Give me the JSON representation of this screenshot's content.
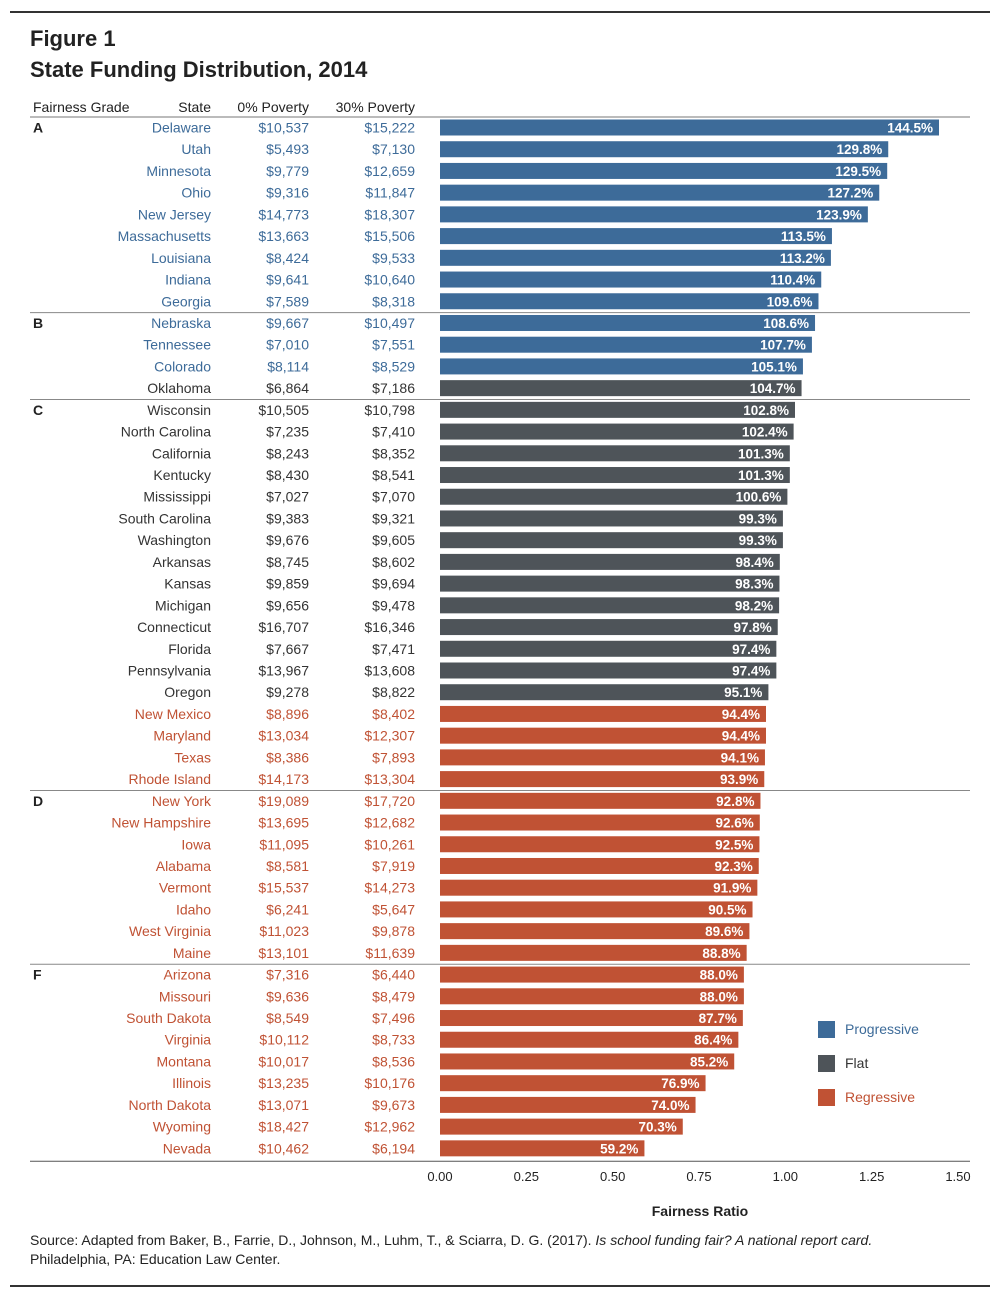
{
  "figure_label": "Figure 1",
  "figure_title": "State Funding Distribution, 2014",
  "source": {
    "prefix": "Source: Adapted from Baker, B., Farrie, D., Johnson, M., Luhm, T., & Sciarra, D. G. (2017). ",
    "italic": "Is school funding fair? A national report card.",
    "suffix": "Philadelphia, PA: Education Law Center."
  },
  "colors": {
    "Progressive": "#3d6b99",
    "Flat": "#4e5459",
    "Regressive": "#c05234",
    "text_dark": "#333333"
  },
  "chart_data": {
    "type": "bar",
    "orientation": "horizontal",
    "column_headers": {
      "grade": "Fairness Grade",
      "state": "State",
      "p0": "0% Poverty",
      "p30": "30% Poverty"
    },
    "xlabel": "Fairness Ratio",
    "ylabel": "",
    "xlim": [
      0,
      1.5
    ],
    "xticks": [
      "0.00",
      "0.25",
      "0.50",
      "0.75",
      "1.00",
      "1.25",
      "1.50"
    ],
    "xtick_values": [
      0,
      0.25,
      0.5,
      0.75,
      1.0,
      1.25,
      1.5
    ],
    "grid": false,
    "legend_position": "right",
    "legend": [
      "Progressive",
      "Flat",
      "Regressive"
    ],
    "groups": [
      {
        "grade": "A",
        "rows": [
          {
            "state": "Delaware",
            "p0": "$10,537",
            "p30": "$15,222",
            "ratio": 1.445,
            "label": "144.5%",
            "category": "Progressive"
          },
          {
            "state": "Utah",
            "p0": "$5,493",
            "p30": "$7,130",
            "ratio": 1.298,
            "label": "129.8%",
            "category": "Progressive"
          },
          {
            "state": "Minnesota",
            "p0": "$9,779",
            "p30": "$12,659",
            "ratio": 1.295,
            "label": "129.5%",
            "category": "Progressive"
          },
          {
            "state": "Ohio",
            "p0": "$9,316",
            "p30": "$11,847",
            "ratio": 1.272,
            "label": "127.2%",
            "category": "Progressive"
          },
          {
            "state": "New Jersey",
            "p0": "$14,773",
            "p30": "$18,307",
            "ratio": 1.239,
            "label": "123.9%",
            "category": "Progressive"
          },
          {
            "state": "Massachusetts",
            "p0": "$13,663",
            "p30": "$15,506",
            "ratio": 1.135,
            "label": "113.5%",
            "category": "Progressive"
          },
          {
            "state": "Louisiana",
            "p0": "$8,424",
            "p30": "$9,533",
            "ratio": 1.132,
            "label": "113.2%",
            "category": "Progressive"
          },
          {
            "state": "Indiana",
            "p0": "$9,641",
            "p30": "$10,640",
            "ratio": 1.104,
            "label": "110.4%",
            "category": "Progressive"
          },
          {
            "state": "Georgia",
            "p0": "$7,589",
            "p30": "$8,318",
            "ratio": 1.096,
            "label": "109.6%",
            "category": "Progressive"
          }
        ]
      },
      {
        "grade": "B",
        "rows": [
          {
            "state": "Nebraska",
            "p0": "$9,667",
            "p30": "$10,497",
            "ratio": 1.086,
            "label": "108.6%",
            "category": "Progressive"
          },
          {
            "state": "Tennessee",
            "p0": "$7,010",
            "p30": "$7,551",
            "ratio": 1.077,
            "label": "107.7%",
            "category": "Progressive"
          },
          {
            "state": "Colorado",
            "p0": "$8,114",
            "p30": "$8,529",
            "ratio": 1.051,
            "label": "105.1%",
            "category": "Progressive"
          },
          {
            "state": "Oklahoma",
            "p0": "$6,864",
            "p30": "$7,186",
            "ratio": 1.047,
            "label": "104.7%",
            "category": "Flat"
          }
        ]
      },
      {
        "grade": "C",
        "rows": [
          {
            "state": "Wisconsin",
            "p0": "$10,505",
            "p30": "$10,798",
            "ratio": 1.028,
            "label": "102.8%",
            "category": "Flat"
          },
          {
            "state": "North Carolina",
            "p0": "$7,235",
            "p30": "$7,410",
            "ratio": 1.024,
            "label": "102.4%",
            "category": "Flat"
          },
          {
            "state": "California",
            "p0": "$8,243",
            "p30": "$8,352",
            "ratio": 1.013,
            "label": "101.3%",
            "category": "Flat"
          },
          {
            "state": "Kentucky",
            "p0": "$8,430",
            "p30": "$8,541",
            "ratio": 1.013,
            "label": "101.3%",
            "category": "Flat"
          },
          {
            "state": "Mississippi",
            "p0": "$7,027",
            "p30": "$7,070",
            "ratio": 1.006,
            "label": "100.6%",
            "category": "Flat"
          },
          {
            "state": "South Carolina",
            "p0": "$9,383",
            "p30": "$9,321",
            "ratio": 0.993,
            "label": "99.3%",
            "category": "Flat"
          },
          {
            "state": "Washington",
            "p0": "$9,676",
            "p30": "$9,605",
            "ratio": 0.993,
            "label": "99.3%",
            "category": "Flat"
          },
          {
            "state": "Arkansas",
            "p0": "$8,745",
            "p30": "$8,602",
            "ratio": 0.984,
            "label": "98.4%",
            "category": "Flat"
          },
          {
            "state": "Kansas",
            "p0": "$9,859",
            "p30": "$9,694",
            "ratio": 0.983,
            "label": "98.3%",
            "category": "Flat"
          },
          {
            "state": "Michigan",
            "p0": "$9,656",
            "p30": "$9,478",
            "ratio": 0.982,
            "label": "98.2%",
            "category": "Flat"
          },
          {
            "state": "Connecticut",
            "p0": "$16,707",
            "p30": "$16,346",
            "ratio": 0.978,
            "label": "97.8%",
            "category": "Flat"
          },
          {
            "state": "Florida",
            "p0": "$7,667",
            "p30": "$7,471",
            "ratio": 0.974,
            "label": "97.4%",
            "category": "Flat"
          },
          {
            "state": "Pennsylvania",
            "p0": "$13,967",
            "p30": "$13,608",
            "ratio": 0.974,
            "label": "97.4%",
            "category": "Flat"
          },
          {
            "state": "Oregon",
            "p0": "$9,278",
            "p30": "$8,822",
            "ratio": 0.951,
            "label": "95.1%",
            "category": "Flat"
          },
          {
            "state": "New Mexico",
            "p0": "$8,896",
            "p30": "$8,402",
            "ratio": 0.944,
            "label": "94.4%",
            "category": "Regressive"
          },
          {
            "state": "Maryland",
            "p0": "$13,034",
            "p30": "$12,307",
            "ratio": 0.944,
            "label": "94.4%",
            "category": "Regressive"
          },
          {
            "state": "Texas",
            "p0": "$8,386",
            "p30": "$7,893",
            "ratio": 0.941,
            "label": "94.1%",
            "category": "Regressive"
          },
          {
            "state": "Rhode Island",
            "p0": "$14,173",
            "p30": "$13,304",
            "ratio": 0.939,
            "label": "93.9%",
            "category": "Regressive"
          }
        ]
      },
      {
        "grade": "D",
        "rows": [
          {
            "state": "New York",
            "p0": "$19,089",
            "p30": "$17,720",
            "ratio": 0.928,
            "label": "92.8%",
            "category": "Regressive"
          },
          {
            "state": "New Hampshire",
            "p0": "$13,695",
            "p30": "$12,682",
            "ratio": 0.926,
            "label": "92.6%",
            "category": "Regressive"
          },
          {
            "state": "Iowa",
            "p0": "$11,095",
            "p30": "$10,261",
            "ratio": 0.925,
            "label": "92.5%",
            "category": "Regressive"
          },
          {
            "state": "Alabama",
            "p0": "$8,581",
            "p30": "$7,919",
            "ratio": 0.923,
            "label": "92.3%",
            "category": "Regressive"
          },
          {
            "state": "Vermont",
            "p0": "$15,537",
            "p30": "$14,273",
            "ratio": 0.919,
            "label": "91.9%",
            "category": "Regressive"
          },
          {
            "state": "Idaho",
            "p0": "$6,241",
            "p30": "$5,647",
            "ratio": 0.905,
            "label": "90.5%",
            "category": "Regressive"
          },
          {
            "state": "West Virginia",
            "p0": "$11,023",
            "p30": "$9,878",
            "ratio": 0.896,
            "label": "89.6%",
            "category": "Regressive"
          },
          {
            "state": "Maine",
            "p0": "$13,101",
            "p30": "$11,639",
            "ratio": 0.888,
            "label": "88.8%",
            "category": "Regressive"
          }
        ]
      },
      {
        "grade": "F",
        "rows": [
          {
            "state": "Arizona",
            "p0": "$7,316",
            "p30": "$6,440",
            "ratio": 0.88,
            "label": "88.0%",
            "category": "Regressive"
          },
          {
            "state": "Missouri",
            "p0": "$9,636",
            "p30": "$8,479",
            "ratio": 0.88,
            "label": "88.0%",
            "category": "Regressive"
          },
          {
            "state": "South Dakota",
            "p0": "$8,549",
            "p30": "$7,496",
            "ratio": 0.877,
            "label": "87.7%",
            "category": "Regressive"
          },
          {
            "state": "Virginia",
            "p0": "$10,112",
            "p30": "$8,733",
            "ratio": 0.864,
            "label": "86.4%",
            "category": "Regressive"
          },
          {
            "state": "Montana",
            "p0": "$10,017",
            "p30": "$8,536",
            "ratio": 0.852,
            "label": "85.2%",
            "category": "Regressive"
          },
          {
            "state": "Illinois",
            "p0": "$13,235",
            "p30": "$10,176",
            "ratio": 0.769,
            "label": "76.9%",
            "category": "Regressive"
          },
          {
            "state": "North Dakota",
            "p0": "$13,071",
            "p30": "$9,673",
            "ratio": 0.74,
            "label": "74.0%",
            "category": "Regressive"
          },
          {
            "state": "Wyoming",
            "p0": "$18,427",
            "p30": "$12,962",
            "ratio": 0.703,
            "label": "70.3%",
            "category": "Regressive"
          },
          {
            "state": "Nevada",
            "p0": "$10,462",
            "p30": "$6,194",
            "ratio": 0.592,
            "label": "59.2%",
            "category": "Regressive"
          }
        ]
      }
    ]
  }
}
